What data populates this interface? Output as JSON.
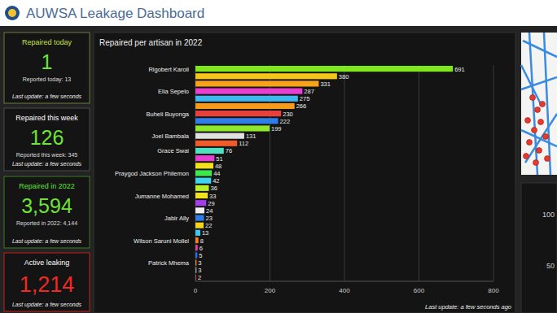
{
  "header": {
    "title": "AUWSA Leakage Dashboard"
  },
  "cards": [
    {
      "title": "Repaired today",
      "value": "1",
      "subtitle": "Reported today: 13",
      "footer": "Last update: a few seconds"
    },
    {
      "title": "Repaired this week",
      "value": "126",
      "subtitle": "Reported this week: 345",
      "footer": "Last update: a few seconds"
    },
    {
      "title": "Repaired in 2022",
      "value": "3,594",
      "subtitle": "Reported in 2022: 4,144",
      "footer": "Last update: a few seconds"
    },
    {
      "title": "Active leaking",
      "value": "1,214",
      "footer": "Last update: a few seconds"
    }
  ],
  "side_panel": {
    "tick_labels": [
      "100",
      "50"
    ]
  },
  "chart_data": {
    "type": "bar",
    "orientation": "horizontal",
    "title": "Repaired per artisan in 2022",
    "categories": [
      "Rigobert Karoli",
      null,
      null,
      "Elia Sepelo",
      null,
      null,
      "Buheli Buyonga",
      null,
      null,
      "Joel Bambala",
      null,
      "Grace Swai",
      null,
      null,
      "Praygod Jackson Philemon",
      null,
      null,
      "Jumanne Mohamed",
      null,
      null,
      "Jabir Ally",
      null,
      null,
      "Wilson Saruni Mollel",
      null,
      null,
      "Patrick Mhema",
      null,
      null
    ],
    "values": [
      691,
      380,
      331,
      287,
      275,
      266,
      230,
      222,
      199,
      131,
      112,
      76,
      51,
      48,
      44,
      42,
      36,
      33,
      29,
      24,
      23,
      22,
      13,
      8,
      6,
      5,
      3,
      3,
      2
    ],
    "colors": [
      "#7ee81c",
      "#f5c518",
      "#f7a21b",
      "#e83fd1",
      "#3fb8f0",
      "#f79a1b",
      "#e8413a",
      "#2f7de8",
      "#8fe82a",
      "#e0e0e0",
      "#f05a28",
      "#4fe0c0",
      "#e83fd1",
      "#f5e11b",
      "#3ee84a",
      "#3fd4f0",
      "#b8f02a",
      "#f5e11b",
      "#a23fe8",
      "#f0f0f0",
      "#2f7de8",
      "#f5d21b",
      "#3fc8f0",
      "#f7821b",
      "#e83f9a",
      "#2f6de8",
      "#f7821b",
      "#9a9a9a",
      "#e8413a"
    ],
    "xlim": [
      0,
      800
    ],
    "xticks": [
      0,
      200,
      400,
      600,
      800
    ],
    "grid": true,
    "data_labels": true,
    "annotations": [
      "Last update: a few seconds ago"
    ]
  }
}
